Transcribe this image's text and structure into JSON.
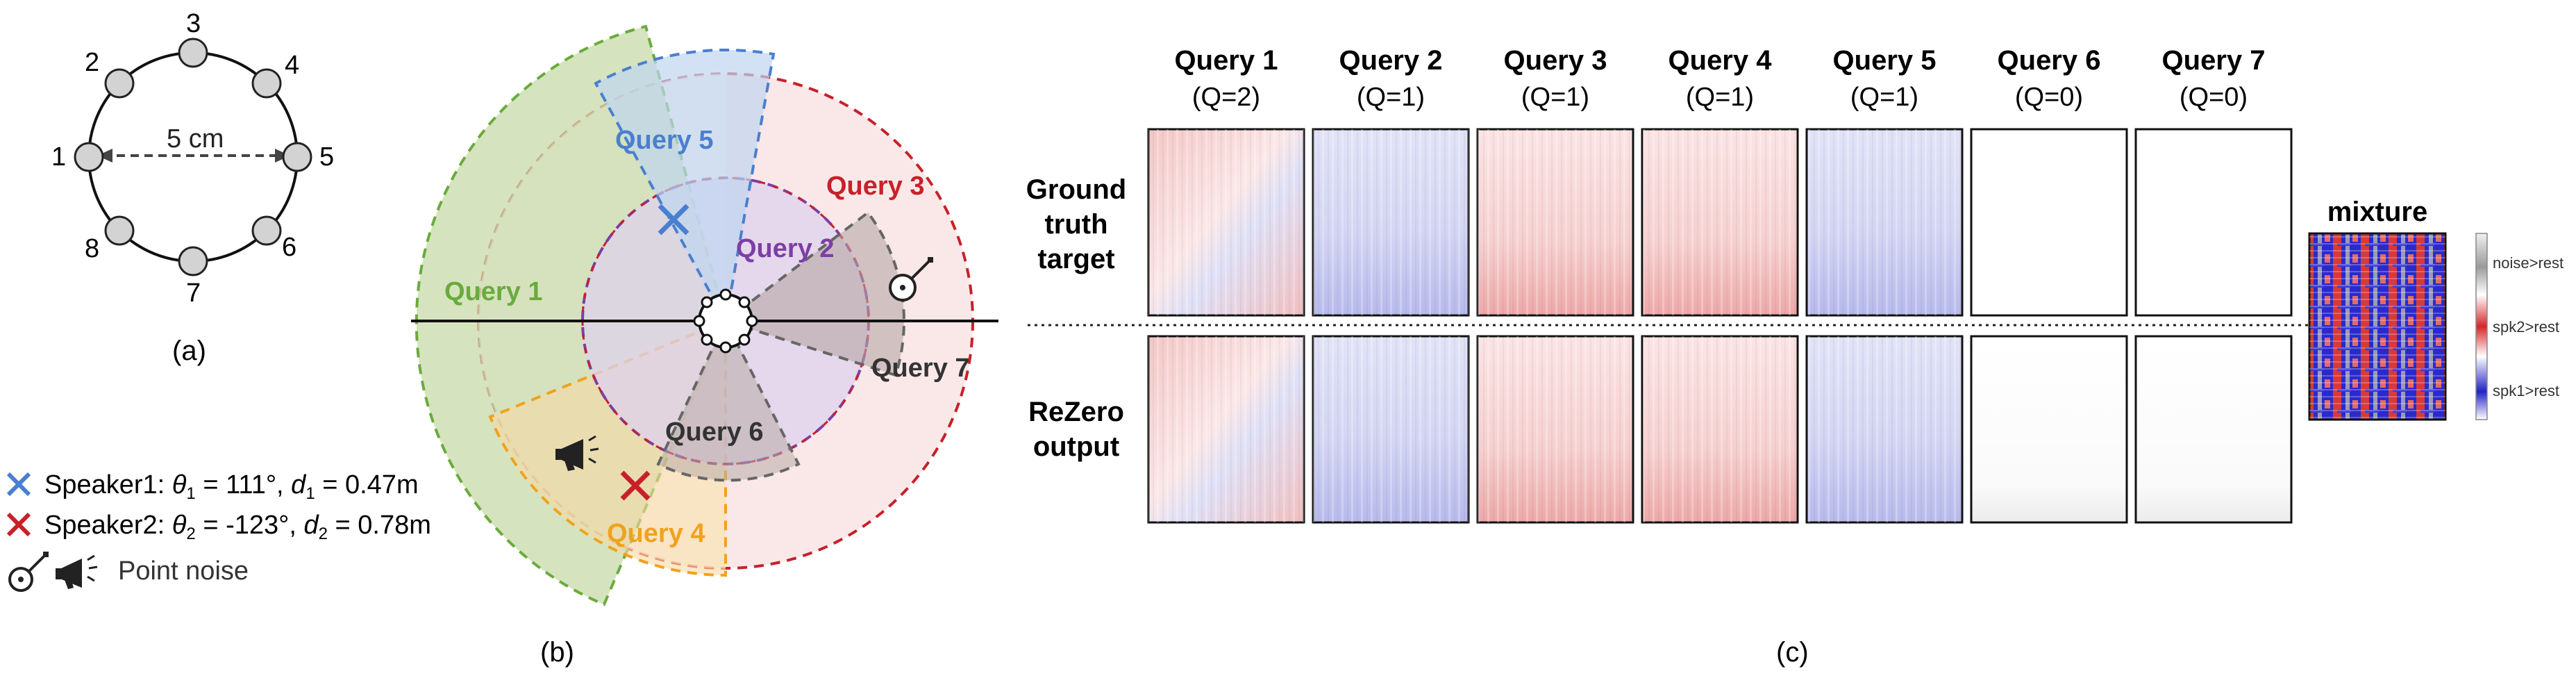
{
  "colors": {
    "green": "#6aab3c",
    "blue": "#4a7fd0",
    "red": "#c8202a",
    "purple": "#7b3fa7",
    "orange": "#f0a21d",
    "gray": "#666666",
    "spk1": "#2323c8",
    "spk2": "#d8262a"
  },
  "panel_a": {
    "mics": [
      "1",
      "2",
      "3",
      "4",
      "5",
      "6",
      "7",
      "8"
    ],
    "distance_label": "5 cm",
    "caption": "(a)"
  },
  "panel_b": {
    "caption": "(b)",
    "queries": {
      "q1": "Query 1",
      "q2": "Query 2",
      "q3": "Query 3",
      "q4": "Query 4",
      "q5": "Query 5",
      "q6": "Query 6",
      "q7": "Query 7"
    },
    "legend": {
      "spk1_prefix": "Speaker1: ",
      "spk1_theta": "θ",
      "spk1_theta_sub": "1",
      "spk1_theta_val": " = 111°,  ",
      "spk1_d": "d",
      "spk1_d_sub": "1",
      "spk1_d_val": " = 0.47m",
      "spk2_prefix": "Speaker2: ",
      "spk2_theta": "θ",
      "spk2_theta_sub": "2",
      "spk2_theta_val": " = -123°, ",
      "spk2_d": "d",
      "spk2_d_sub": "2",
      "spk2_d_val": " = 0.78m",
      "noise_label": "Point noise"
    }
  },
  "panel_c": {
    "caption": "(c)",
    "columns": [
      {
        "title": "Query 1",
        "sub": "(Q=2)",
        "tint": "mixed"
      },
      {
        "title": "Query 2",
        "sub": "(Q=1)",
        "tint": "blue"
      },
      {
        "title": "Query 3",
        "sub": "(Q=1)",
        "tint": "red"
      },
      {
        "title": "Query 4",
        "sub": "(Q=1)",
        "tint": "red"
      },
      {
        "title": "Query 5",
        "sub": "(Q=1)",
        "tint": "blue"
      },
      {
        "title": "Query 6",
        "sub": "(Q=0)",
        "tint": "empty"
      },
      {
        "title": "Query 7",
        "sub": "(Q=0)",
        "tint": "empty"
      }
    ],
    "rows": [
      {
        "lines": [
          "Ground",
          "truth",
          "target"
        ]
      },
      {
        "lines": [
          "ReZero",
          "output"
        ]
      }
    ],
    "mixture_title": "mixture",
    "colorbar_labels": [
      "noise>rest",
      "spk2>rest",
      "spk1>rest"
    ]
  }
}
